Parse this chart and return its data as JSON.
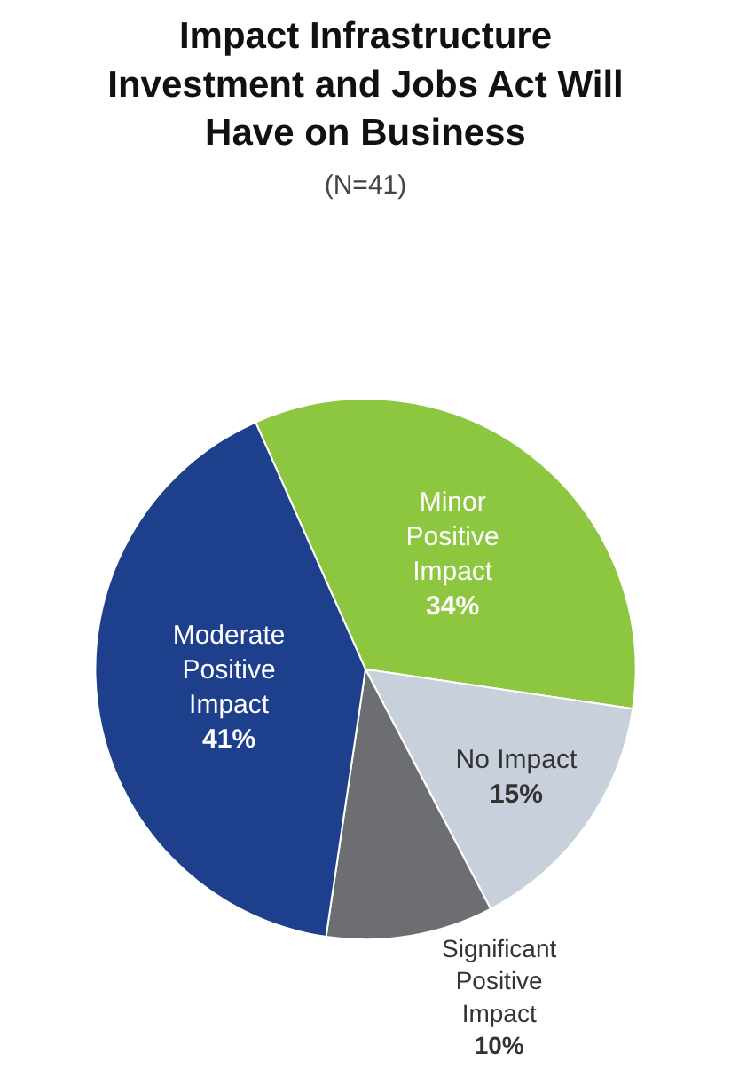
{
  "chart_data": {
    "type": "pie",
    "title": "Impact Infrastructure Investment and Jobs Act Will Have on Business",
    "subtitle": "(N=41)",
    "categories": [
      "Minor Positive Impact",
      "No Impact",
      "Significant Positive Impact",
      "Moderate Positive Impact"
    ],
    "values": [
      34,
      15,
      10,
      41
    ],
    "colors": [
      "#8dc63f",
      "#c8d0db",
      "#6d6e71",
      "#1e3f8c"
    ],
    "value_labels": [
      "34%",
      "15%",
      "10%",
      "41%"
    ],
    "legend": false
  }
}
